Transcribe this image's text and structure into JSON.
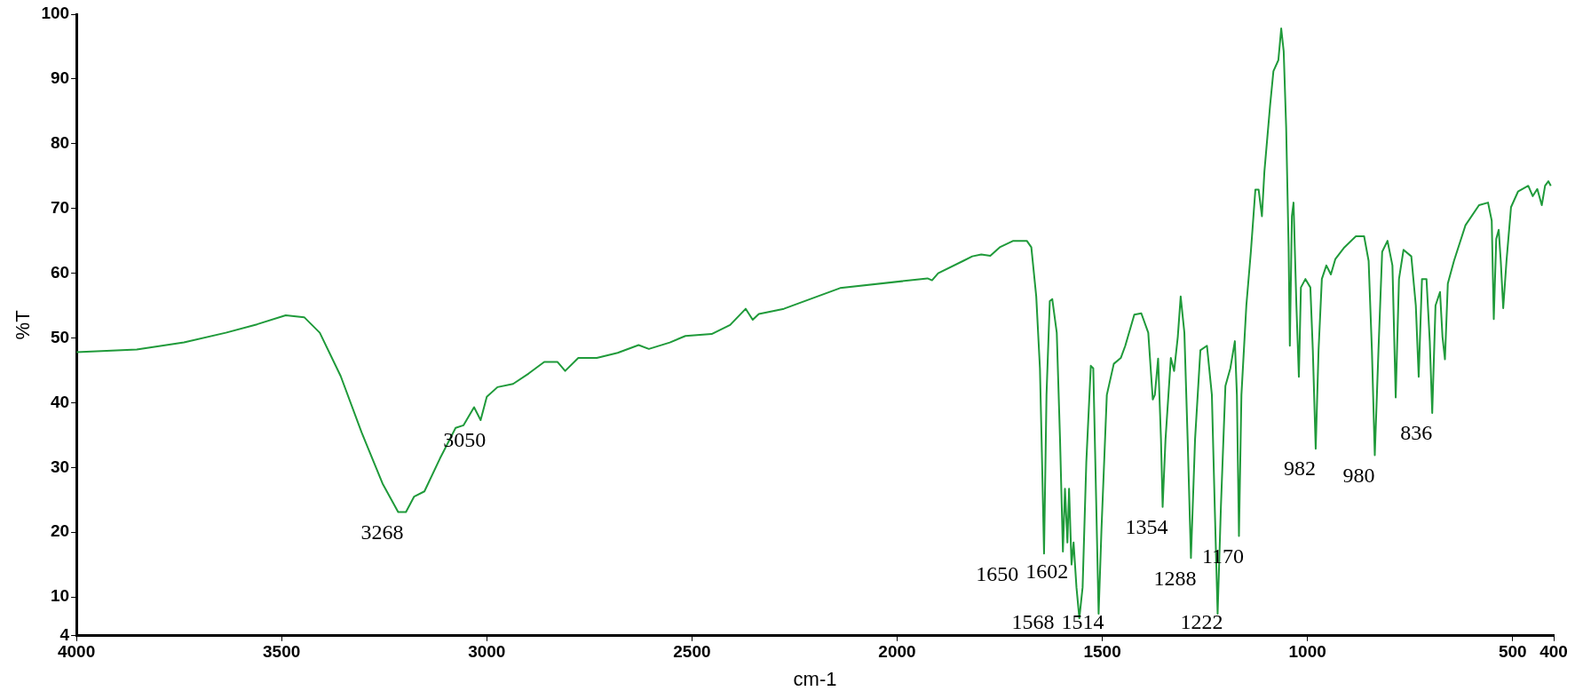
{
  "chart_data": {
    "type": "line",
    "xlabel": "cm-1",
    "ylabel": "%T",
    "color": "#1f9a3a",
    "marker": "none",
    "line_style": "solid",
    "grid": false,
    "legend": false,
    "xlim": [
      4000,
      400
    ],
    "xticks": [
      4000,
      3500,
      3000,
      2500,
      2000,
      1500,
      1000,
      500,
      400
    ],
    "ylim": [
      4,
      100
    ],
    "yticks": [
      4,
      10,
      20,
      30,
      40,
      50,
      60,
      70,
      80,
      90,
      100
    ],
    "x": [
      4000,
      3853,
      3738,
      3636,
      3560,
      3490,
      3445,
      3407,
      3356,
      3305,
      3254,
      3216,
      3197,
      3177,
      3152,
      3114,
      3076,
      3057,
      3031,
      3015,
      3000,
      2974,
      2936,
      2898,
      2860,
      2828,
      2809,
      2777,
      2732,
      2681,
      2630,
      2605,
      2554,
      2516,
      2452,
      2407,
      2369,
      2352,
      2337,
      2276,
      2139,
      1926,
      1915,
      1900,
      1839,
      1817,
      1795,
      1773,
      1750,
      1717,
      1684,
      1673,
      1661,
      1652,
      1648,
      1642,
      1636,
      1628,
      1622,
      1611,
      1603,
      1596,
      1591,
      1585,
      1581,
      1575,
      1570,
      1563,
      1556,
      1548,
      1539,
      1528,
      1522,
      1517,
      1509,
      1502,
      1489,
      1472,
      1455,
      1444,
      1422,
      1405,
      1388,
      1377,
      1372,
      1364,
      1357,
      1353,
      1346,
      1333,
      1325,
      1316,
      1309,
      1300,
      1292,
      1284,
      1274,
      1261,
      1245,
      1233,
      1226,
      1219,
      1211,
      1200,
      1188,
      1177,
      1172,
      1167,
      1161,
      1149,
      1138,
      1127,
      1119,
      1111,
      1105,
      1091,
      1083,
      1071,
      1064,
      1058,
      1052,
      1046,
      1043,
      1038,
      1034,
      1027,
      1021,
      1016,
      1005,
      993,
      987,
      980,
      973,
      965,
      954,
      943,
      932,
      910,
      882,
      862,
      851,
      843,
      836,
      827,
      818,
      805,
      793,
      785,
      777,
      766,
      747,
      736,
      729,
      721,
      710,
      702,
      696,
      688,
      677,
      671,
      665,
      658,
      643,
      615,
      582,
      560,
      551,
      546,
      540,
      534,
      529,
      523,
      515,
      504,
      487,
      462,
      451,
      440,
      429,
      421,
      413,
      407
    ],
    "values": [
      47.8,
      48.2,
      49.3,
      50.8,
      52.1,
      53.5,
      53.2,
      50.8,
      44.1,
      35.4,
      27.5,
      23.1,
      23.1,
      25.5,
      26.3,
      31.4,
      36.1,
      36.5,
      39.3,
      37.3,
      40.9,
      42.4,
      42.9,
      44.5,
      46.3,
      46.3,
      44.9,
      46.9,
      46.9,
      47.7,
      48.9,
      48.3,
      49.3,
      50.3,
      50.6,
      52.0,
      54.5,
      52.8,
      53.7,
      54.5,
      57.7,
      59.2,
      58.9,
      60.0,
      61.9,
      62.6,
      62.9,
      62.7,
      64.0,
      65.0,
      65.0,
      64.0,
      56.4,
      45.3,
      34.3,
      16.7,
      41.2,
      55.7,
      56.0,
      50.8,
      34.3,
      17.0,
      26.7,
      18.4,
      26.7,
      15.0,
      18.4,
      11.5,
      6.7,
      11.5,
      30.8,
      45.7,
      45.3,
      30.8,
      7.4,
      20.5,
      41.2,
      46.0,
      46.9,
      48.8,
      53.6,
      53.8,
      50.8,
      40.5,
      41.2,
      46.8,
      34.3,
      23.9,
      34.3,
      46.9,
      44.9,
      50.2,
      56.4,
      50.8,
      34.3,
      16.0,
      34.3,
      48.1,
      48.8,
      41.2,
      23.9,
      7.4,
      23.9,
      42.6,
      45.3,
      49.5,
      41.2,
      19.4,
      41.2,
      55.0,
      63.3,
      72.9,
      72.9,
      68.8,
      75.7,
      86.0,
      91.2,
      92.9,
      97.8,
      94.3,
      82.6,
      64.0,
      48.8,
      68.8,
      70.9,
      55.0,
      44.0,
      57.8,
      59.1,
      57.8,
      48.1,
      32.9,
      48.1,
      59.1,
      61.2,
      59.8,
      62.2,
      64.0,
      65.7,
      65.7,
      61.9,
      48.1,
      31.9,
      48.1,
      63.3,
      65.0,
      61.2,
      40.8,
      59.1,
      63.6,
      62.6,
      55.0,
      44.0,
      59.1,
      59.1,
      49.5,
      38.4,
      55.0,
      57.1,
      50.2,
      46.7,
      58.4,
      61.9,
      67.4,
      70.5,
      70.9,
      68.1,
      52.9,
      65.3,
      66.7,
      61.9,
      54.6,
      61.9,
      70.2,
      72.6,
      73.5,
      71.9,
      73.0,
      70.5,
      73.5,
      74.2,
      73.5
    ],
    "annotations": [
      {
        "text": "3268",
        "x": 3216,
        "y": 23.1
      },
      {
        "text": "3050",
        "x": 3015,
        "y": 37.3
      },
      {
        "text": "1650",
        "x": 1642,
        "y": 16.7
      },
      {
        "text": "1602",
        "x": 1596,
        "y": 17.0
      },
      {
        "text": "1568",
        "x": 1556,
        "y": 6.7
      },
      {
        "text": "1514",
        "x": 1509,
        "y": 7.4
      },
      {
        "text": "1354",
        "x": 1353,
        "y": 23.9
      },
      {
        "text": "1288",
        "x": 1284,
        "y": 16.0
      },
      {
        "text": "1222",
        "x": 1219,
        "y": 7.4
      },
      {
        "text": "1170",
        "x": 1167,
        "y": 19.4
      },
      {
        "text": "982",
        "x": 980,
        "y": 32.9
      },
      {
        "text": "980",
        "x": 836,
        "y": 31.9
      },
      {
        "text": "836",
        "x": 696,
        "y": 38.4
      }
    ]
  }
}
